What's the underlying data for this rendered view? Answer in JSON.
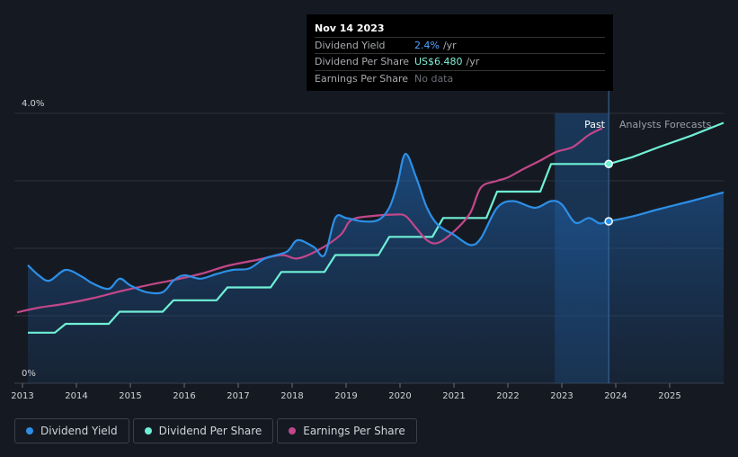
{
  "tooltip": {
    "date": "Nov 14 2023",
    "rows": [
      {
        "label": "Dividend Yield",
        "value": "2.4%",
        "unit": "/yr"
      },
      {
        "label": "Dividend Per Share",
        "value": "US$6.480",
        "unit": "/yr"
      },
      {
        "label": "Earnings Per Share",
        "value": "No data",
        "unit": ""
      }
    ]
  },
  "labels": {
    "past": "Past",
    "forecast": "Analysts Forecasts"
  },
  "legend": [
    {
      "label": "Dividend Yield",
      "color": "#2d8fe6"
    },
    {
      "label": "Dividend Per Share",
      "color": "#6ff0d6"
    },
    {
      "label": "Earnings Per Share",
      "color": "#c2478a"
    }
  ],
  "colors": {
    "yield": "#2d8fe6",
    "dps": "#6ff0d6",
    "eps": "#c2478a",
    "background": "#151a22"
  },
  "chart_data": {
    "type": "line",
    "xlim": [
      2012.85,
      2026.0
    ],
    "ylim": [
      0,
      4.0
    ],
    "y_ticks": [
      {
        "value": 4.0,
        "label": "4.0%"
      },
      {
        "value": 0,
        "label": "0%"
      }
    ],
    "x_ticks": [
      2013,
      2014,
      2015,
      2016,
      2017,
      2018,
      2019,
      2020,
      2021,
      2022,
      2023,
      2024,
      2025
    ],
    "x_tick_labels": [
      "2013",
      "2014",
      "2015",
      "2016",
      "2017",
      "2018",
      "2019",
      "2020",
      "2021",
      "2022",
      "2023",
      "2024",
      "2025"
    ],
    "past_end": 2023.87,
    "forecast_shade_start": 2022.87,
    "grid": true,
    "legend_position": "bottom-left",
    "series": [
      {
        "name": "Dividend Yield",
        "key": "yield",
        "unit": "%",
        "points": [
          [
            2013.1,
            1.75
          ],
          [
            2013.3,
            1.6
          ],
          [
            2013.5,
            1.52
          ],
          [
            2013.8,
            1.68
          ],
          [
            2014.1,
            1.58
          ],
          [
            2014.3,
            1.48
          ],
          [
            2014.6,
            1.4
          ],
          [
            2014.8,
            1.55
          ],
          [
            2015.0,
            1.45
          ],
          [
            2015.3,
            1.35
          ],
          [
            2015.6,
            1.35
          ],
          [
            2015.8,
            1.52
          ],
          [
            2016.0,
            1.6
          ],
          [
            2016.3,
            1.55
          ],
          [
            2016.6,
            1.62
          ],
          [
            2016.9,
            1.68
          ],
          [
            2017.2,
            1.7
          ],
          [
            2017.5,
            1.85
          ],
          [
            2017.9,
            1.95
          ],
          [
            2018.1,
            2.12
          ],
          [
            2018.4,
            2.02
          ],
          [
            2018.6,
            1.9
          ],
          [
            2018.8,
            2.45
          ],
          [
            2019.0,
            2.45
          ],
          [
            2019.3,
            2.4
          ],
          [
            2019.6,
            2.42
          ],
          [
            2019.8,
            2.6
          ],
          [
            2019.95,
            2.95
          ],
          [
            2020.1,
            3.4
          ],
          [
            2020.3,
            3.05
          ],
          [
            2020.5,
            2.6
          ],
          [
            2020.7,
            2.35
          ],
          [
            2021.0,
            2.2
          ],
          [
            2021.3,
            2.05
          ],
          [
            2021.5,
            2.15
          ],
          [
            2021.8,
            2.6
          ],
          [
            2022.1,
            2.7
          ],
          [
            2022.5,
            2.6
          ],
          [
            2022.8,
            2.7
          ],
          [
            2023.0,
            2.65
          ],
          [
            2023.25,
            2.38
          ],
          [
            2023.5,
            2.45
          ],
          [
            2023.7,
            2.37
          ],
          [
            2023.87,
            2.4
          ],
          [
            2024.3,
            2.47
          ],
          [
            2024.8,
            2.58
          ],
          [
            2025.4,
            2.7
          ],
          [
            2026.0,
            2.83
          ]
        ]
      },
      {
        "name": "Dividend Per Share",
        "key": "dps",
        "unit": "US$",
        "steps": [
          [
            2013.1,
            0.75
          ],
          [
            2013.6,
            0.75
          ],
          [
            2013.8,
            0.88
          ],
          [
            2014.6,
            0.88
          ],
          [
            2014.8,
            1.06
          ],
          [
            2015.6,
            1.06
          ],
          [
            2015.8,
            1.23
          ],
          [
            2016.6,
            1.23
          ],
          [
            2016.8,
            1.42
          ],
          [
            2017.6,
            1.42
          ],
          [
            2017.8,
            1.65
          ],
          [
            2018.6,
            1.65
          ],
          [
            2018.8,
            1.9
          ],
          [
            2019.6,
            1.9
          ],
          [
            2019.8,
            2.17
          ],
          [
            2020.6,
            2.17
          ],
          [
            2020.8,
            2.45
          ],
          [
            2021.6,
            2.45
          ],
          [
            2021.8,
            2.84
          ],
          [
            2022.6,
            2.84
          ],
          [
            2022.8,
            3.25
          ],
          [
            2023.87,
            3.25
          ],
          [
            2024.3,
            3.35
          ],
          [
            2024.8,
            3.5
          ],
          [
            2025.4,
            3.67
          ],
          [
            2026.0,
            3.86
          ]
        ]
      },
      {
        "name": "Earnings Per Share",
        "key": "eps",
        "unit": "US$",
        "points": [
          [
            2012.9,
            1.05
          ],
          [
            2013.3,
            1.12
          ],
          [
            2013.8,
            1.18
          ],
          [
            2014.3,
            1.26
          ],
          [
            2014.8,
            1.36
          ],
          [
            2015.3,
            1.45
          ],
          [
            2015.8,
            1.53
          ],
          [
            2016.3,
            1.62
          ],
          [
            2016.8,
            1.74
          ],
          [
            2017.3,
            1.82
          ],
          [
            2017.8,
            1.9
          ],
          [
            2018.1,
            1.85
          ],
          [
            2018.5,
            1.98
          ],
          [
            2018.9,
            2.2
          ],
          [
            2019.1,
            2.42
          ],
          [
            2019.5,
            2.48
          ],
          [
            2019.9,
            2.5
          ],
          [
            2020.1,
            2.48
          ],
          [
            2020.3,
            2.3
          ],
          [
            2020.5,
            2.12
          ],
          [
            2020.7,
            2.08
          ],
          [
            2021.0,
            2.25
          ],
          [
            2021.3,
            2.52
          ],
          [
            2021.5,
            2.9
          ],
          [
            2021.8,
            3.0
          ],
          [
            2022.0,
            3.05
          ],
          [
            2022.3,
            3.18
          ],
          [
            2022.6,
            3.3
          ],
          [
            2022.9,
            3.43
          ],
          [
            2023.2,
            3.5
          ],
          [
            2023.5,
            3.68
          ],
          [
            2023.75,
            3.78
          ]
        ]
      }
    ]
  }
}
